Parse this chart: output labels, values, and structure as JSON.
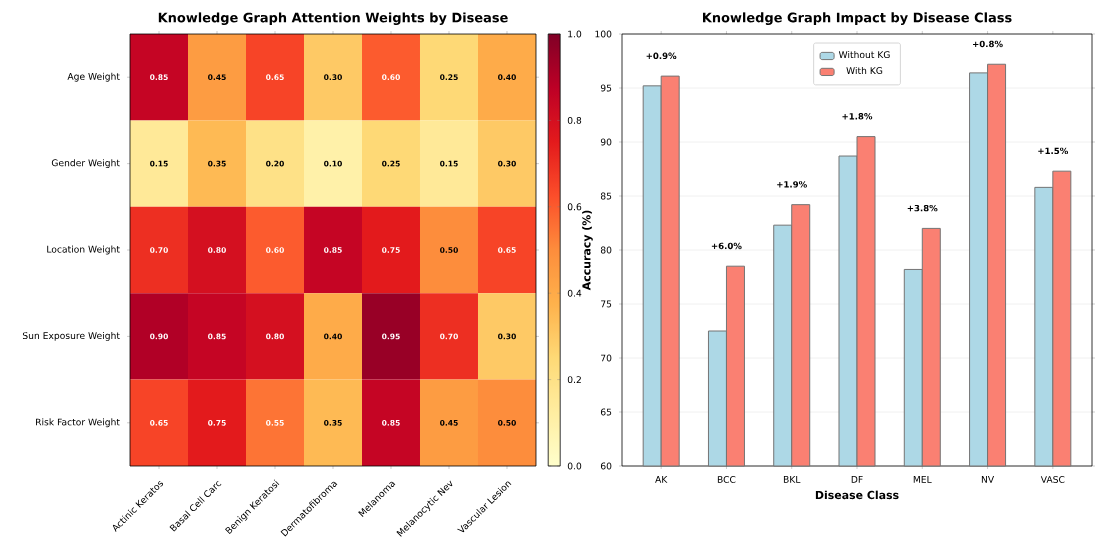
{
  "chart_data": [
    {
      "type": "heatmap",
      "title": "Knowledge Graph Attention Weights by Disease",
      "categories": [
        "Actinic Keratos",
        "Basal Cell Carc",
        "Benign Keratosi",
        "Dermatofibroma",
        "Melanoma",
        "Melanocytic Nev",
        "Vascular Lesion"
      ],
      "y_categories": [
        "Age Weight",
        "Gender Weight",
        "Location Weight",
        "Sun Exposure Weight",
        "Risk Factor Weight"
      ],
      "cells": [
        [
          0.85,
          0.45,
          0.65,
          0.3,
          0.6,
          0.25,
          0.4
        ],
        [
          0.15,
          0.35,
          0.2,
          0.1,
          0.25,
          0.15,
          0.3
        ],
        [
          0.7,
          0.8,
          0.6,
          0.85,
          0.75,
          0.5,
          0.65
        ],
        [
          0.9,
          0.85,
          0.8,
          0.4,
          0.95,
          0.7,
          0.3
        ],
        [
          0.65,
          0.75,
          0.55,
          0.35,
          0.85,
          0.45,
          0.5
        ]
      ],
      "cell_labels": [
        [
          "0.85",
          "0.45",
          "0.65",
          "0.30",
          "0.60",
          "0.25",
          "0.40"
        ],
        [
          "0.15",
          "0.35",
          "0.20",
          "0.10",
          "0.25",
          "0.15",
          "0.30"
        ],
        [
          "0.70",
          "0.80",
          "0.60",
          "0.85",
          "0.75",
          "0.50",
          "0.65"
        ],
        [
          "0.90",
          "0.85",
          "0.80",
          "0.40",
          "0.95",
          "0.70",
          "0.30"
        ],
        [
          "0.65",
          "0.75",
          "0.55",
          "0.35",
          "0.85",
          "0.45",
          "0.50"
        ]
      ],
      "clim": [
        0,
        1
      ],
      "cticks": [
        {
          "value": 0,
          "label": "0.0"
        },
        0.2,
        0.4,
        0.6,
        0.8,
        {
          "value": 1,
          "label": "1.0"
        }
      ]
    },
    {
      "type": "bar",
      "title": "Knowledge Graph Impact by Disease Class",
      "xlabel": "Disease Class",
      "ylabel": "Accuracy (%)",
      "categories": [
        "AK",
        "BCC",
        "BKL",
        "DF",
        "MEL",
        "NV",
        "VASC"
      ],
      "series": [
        {
          "name": "Without KG",
          "color": "#add8e6",
          "values": [
            95.2,
            72.5,
            82.3,
            88.7,
            78.2,
            96.4,
            85.8
          ]
        },
        {
          "name": "With KG",
          "color": "#fa8072",
          "values": [
            96.1,
            78.5,
            84.2,
            90.5,
            82.0,
            97.2,
            87.3
          ]
        }
      ],
      "ylim": [
        60,
        100
      ],
      "yticks": [
        60,
        65,
        70,
        75,
        80,
        85,
        90,
        95,
        100
      ],
      "grid": "y",
      "legend": "top",
      "annotations": [
        {
          "text": "+0.9%",
          "x": "AK",
          "y": 96.1
        },
        {
          "text": "+6.0%",
          "x": "BCC",
          "y": 78.5
        },
        {
          "text": "+1.9%",
          "x": "BKL",
          "y": 84.2
        },
        {
          "text": "+1.8%",
          "x": "DF",
          "y": 90.5
        },
        {
          "text": "+3.8%",
          "x": "MEL",
          "y": 82.0
        },
        {
          "text": "+0.8%",
          "x": "NV",
          "y": 97.2
        },
        {
          "text": "+1.5%",
          "x": "VASC",
          "y": 87.3
        }
      ]
    }
  ]
}
